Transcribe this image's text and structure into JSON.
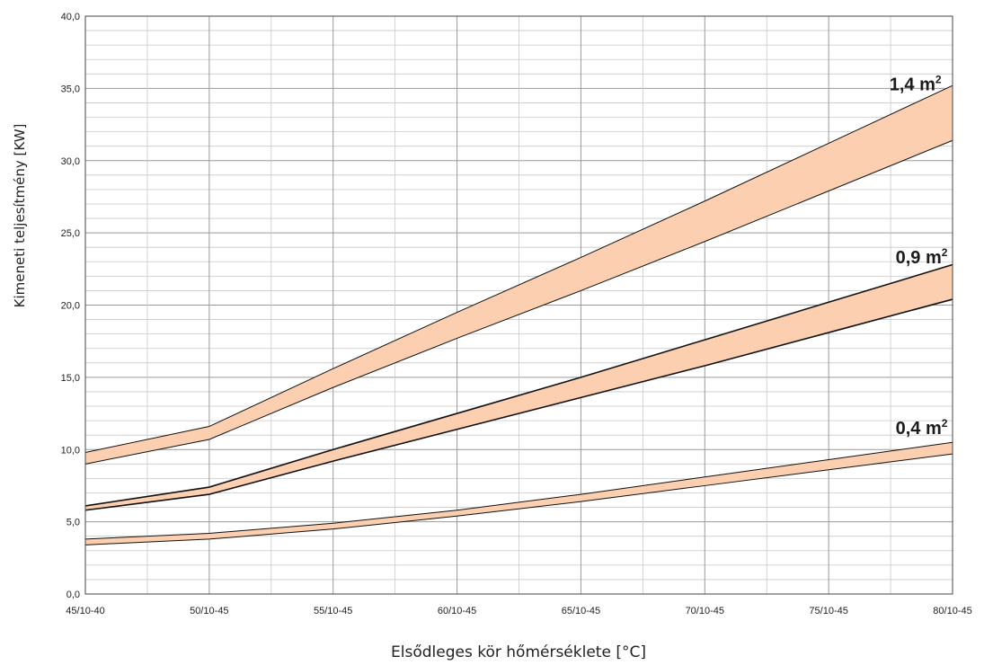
{
  "chart_data": {
    "type": "area",
    "x": [
      "45/10-40",
      "50/10-45",
      "55/10-45",
      "60/10-45",
      "65/10-45",
      "70/10-45",
      "75/10-45",
      "80/10-45"
    ],
    "xlabel": "Elsődleges kör hőmérséklete  [°C]",
    "ylabel": "Kimeneti teljesítmény [KW]",
    "ylim": [
      0,
      40
    ],
    "y_ticks": [
      "0,0",
      "5,0",
      "10,0",
      "15,0",
      "20,0",
      "25,0",
      "30,0",
      "35,0",
      "40,0"
    ],
    "grid": true,
    "series": [
      {
        "name": "1,4 m",
        "upper": [
          9.8,
          11.6,
          15.6,
          19.5,
          23.3,
          27.2,
          31.2,
          35.2
        ],
        "lower": [
          9.0,
          10.7,
          14.3,
          17.7,
          21.0,
          24.4,
          27.9,
          31.4
        ]
      },
      {
        "name": "0,9 m",
        "upper": [
          6.1,
          7.4,
          10.0,
          12.5,
          15.0,
          17.6,
          20.2,
          22.8
        ],
        "lower": [
          5.8,
          6.9,
          9.2,
          11.4,
          13.6,
          15.8,
          18.1,
          20.4
        ]
      },
      {
        "name": "0,4 m",
        "upper": [
          3.8,
          4.2,
          4.9,
          5.8,
          6.9,
          8.1,
          9.3,
          10.5
        ],
        "lower": [
          3.4,
          3.8,
          4.5,
          5.4,
          6.4,
          7.5,
          8.6,
          9.7
        ]
      }
    ],
    "label_superscript": "2",
    "colors": {
      "band_fill": "#fbcfaf",
      "band_stroke": "#111111",
      "grid_major": "#9a9a9a",
      "grid_minor": "#c8c8c8"
    }
  }
}
